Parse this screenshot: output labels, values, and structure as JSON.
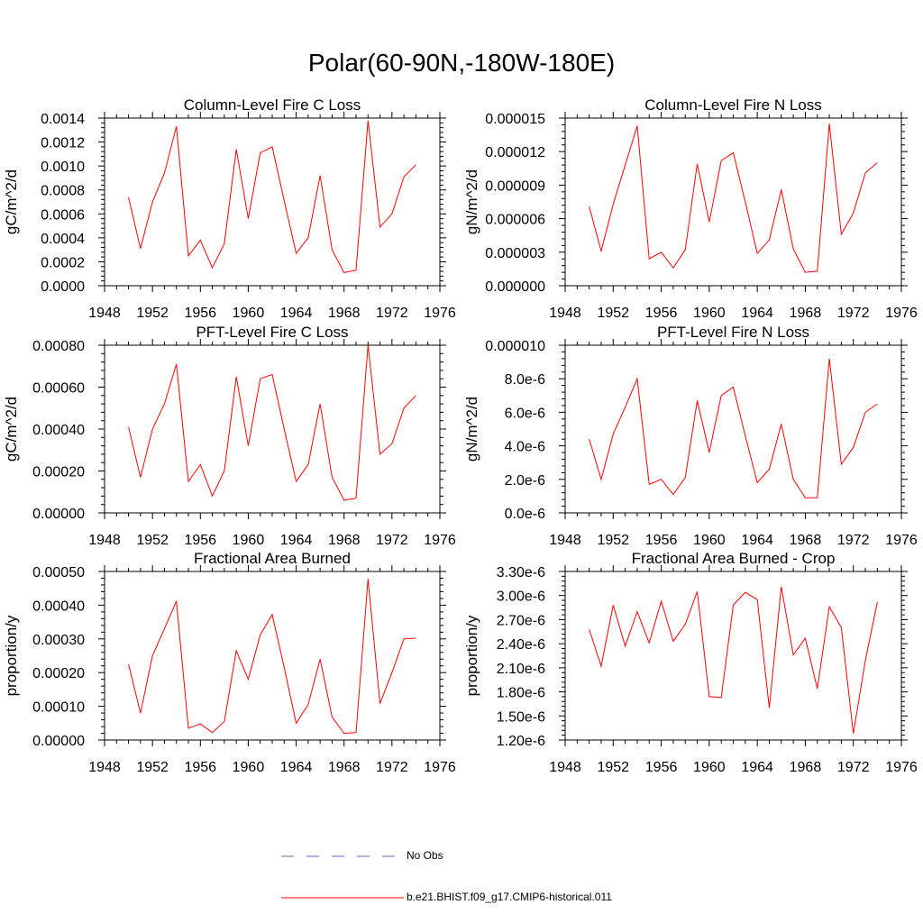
{
  "page": {
    "title": "Polar(60-90N,-180W-180E)"
  },
  "legend": {
    "items": [
      {
        "label": "No Obs",
        "color": "#5a6ec8",
        "style": "dashed"
      },
      {
        "label": "b.e21.BHIST.f09_g17.CMIP6-historical.011",
        "color": "#ff0000",
        "style": "solid"
      }
    ]
  },
  "chart_data": [
    {
      "type": "line",
      "title": "Column-Level Fire C Loss",
      "ylabel": "gC/m^2/d",
      "xlim": [
        1948,
        1976
      ],
      "ylim": [
        0,
        0.0014
      ],
      "xticks": [
        "1948",
        "1952",
        "1956",
        "1960",
        "1964",
        "1968",
        "1972",
        "1976"
      ],
      "yticks": [
        "0.0000",
        "0.0002",
        "0.0004",
        "0.0006",
        "0.0008",
        "0.0010",
        "0.0012",
        "0.0014"
      ],
      "x": [
        1950,
        1951,
        1952,
        1953,
        1954,
        1955,
        1956,
        1957,
        1958,
        1959,
        1960,
        1961,
        1962,
        1963,
        1964,
        1965,
        1966,
        1967,
        1968,
        1969,
        1970,
        1971,
        1972,
        1973,
        1974
      ],
      "series": [
        {
          "color": "#ff0000",
          "values": [
            0.00074,
            0.00031,
            0.0007,
            0.00094,
            0.00133,
            0.00025,
            0.00038,
            0.00015,
            0.00035,
            0.00114,
            0.00056,
            0.00111,
            0.00116,
            0.00071,
            0.00027,
            0.0004,
            0.00092,
            0.0003,
            0.00011,
            0.00013,
            0.00138,
            0.00049,
            0.0006,
            0.00091,
            0.00101
          ]
        }
      ]
    },
    {
      "type": "line",
      "title": "Column-Level Fire N Loss",
      "ylabel": "gN/m^2/d",
      "xlim": [
        1948,
        1976
      ],
      "ylim": [
        0,
        1.5e-05
      ],
      "xticks": [
        "1948",
        "1952",
        "1956",
        "1960",
        "1964",
        "1968",
        "1972",
        "1976"
      ],
      "yticks": [
        "0.000000",
        "0.000003",
        "0.000006",
        "0.000009",
        "0.000012",
        "0.000015"
      ],
      "x": [
        1950,
        1951,
        1952,
        1953,
        1954,
        1955,
        1956,
        1957,
        1958,
        1959,
        1960,
        1961,
        1962,
        1963,
        1964,
        1965,
        1966,
        1967,
        1968,
        1969,
        1970,
        1971,
        1972,
        1973,
        1974
      ],
      "series": [
        {
          "color": "#ff0000",
          "values": [
            7.1e-06,
            3.1e-06,
            7.3e-06,
            1.08e-05,
            1.43e-05,
            2.4e-06,
            3e-06,
            1.6e-06,
            3.2e-06,
            1.09e-05,
            5.7e-06,
            1.12e-05,
            1.19e-05,
            7.5e-06,
            2.9e-06,
            4.1e-06,
            8.6e-06,
            3.3e-06,
            1.2e-06,
            1.3e-06,
            1.45e-05,
            4.6e-06,
            6.5e-06,
            1.01e-05,
            1.1e-05
          ]
        }
      ]
    },
    {
      "type": "line",
      "title": "PFT-Level Fire C Loss",
      "ylabel": "gC/m^2/d",
      "xlim": [
        1948,
        1976
      ],
      "ylim": [
        0,
        0.0008
      ],
      "xticks": [
        "1948",
        "1952",
        "1956",
        "1960",
        "1964",
        "1968",
        "1972",
        "1976"
      ],
      "yticks": [
        "0.00000",
        "0.00020",
        "0.00040",
        "0.00060",
        "0.00080"
      ],
      "x": [
        1950,
        1951,
        1952,
        1953,
        1954,
        1955,
        1956,
        1957,
        1958,
        1959,
        1960,
        1961,
        1962,
        1963,
        1964,
        1965,
        1966,
        1967,
        1968,
        1969,
        1970,
        1971,
        1972,
        1973,
        1974
      ],
      "series": [
        {
          "color": "#ff0000",
          "values": [
            0.00041,
            0.00017,
            0.0004,
            0.00052,
            0.00071,
            0.00015,
            0.00023,
            8e-05,
            0.0002,
            0.00065,
            0.00032,
            0.00064,
            0.00066,
            0.0004,
            0.00015,
            0.00023,
            0.00052,
            0.00017,
            6e-05,
            7e-05,
            0.0008,
            0.00028,
            0.00033,
            0.0005,
            0.00056
          ]
        }
      ]
    },
    {
      "type": "line",
      "title": "PFT-Level Fire N Loss",
      "ylabel": "gN/m^2/d",
      "xlim": [
        1948,
        1976
      ],
      "ylim": [
        0,
        1e-05
      ],
      "xticks": [
        "1948",
        "1952",
        "1956",
        "1960",
        "1964",
        "1968",
        "1972",
        "1976"
      ],
      "yticks": [
        "0.0e-6",
        "2.0e-6",
        "4.0e-6",
        "6.0e-6",
        "8.0e-6",
        "0.000010"
      ],
      "x": [
        1950,
        1951,
        1952,
        1953,
        1954,
        1955,
        1956,
        1957,
        1958,
        1959,
        1960,
        1961,
        1962,
        1963,
        1964,
        1965,
        1966,
        1967,
        1968,
        1969,
        1970,
        1971,
        1972,
        1973,
        1974
      ],
      "series": [
        {
          "color": "#ff0000",
          "values": [
            4.4e-06,
            2e-06,
            4.7e-06,
            6.3e-06,
            8e-06,
            1.7e-06,
            2e-06,
            1.1e-06,
            2.1e-06,
            6.7e-06,
            3.6e-06,
            7e-06,
            7.5e-06,
            4.6e-06,
            1.8e-06,
            2.6e-06,
            5.3e-06,
            2e-06,
            9e-07,
            9e-07,
            9.2e-06,
            2.9e-06,
            3.9e-06,
            6e-06,
            6.5e-06
          ]
        }
      ]
    },
    {
      "type": "line",
      "title": "Fractional Area Burned",
      "ylabel": "proportion/y",
      "xlim": [
        1948,
        1976
      ],
      "ylim": [
        0,
        0.0005
      ],
      "xticks": [
        "1948",
        "1952",
        "1956",
        "1960",
        "1964",
        "1968",
        "1972",
        "1976"
      ],
      "yticks": [
        "0.00000",
        "0.00010",
        "0.00020",
        "0.00030",
        "0.00040",
        "0.00050"
      ],
      "x": [
        1950,
        1951,
        1952,
        1953,
        1954,
        1955,
        1956,
        1957,
        1958,
        1959,
        1960,
        1961,
        1962,
        1963,
        1964,
        1965,
        1966,
        1967,
        1968,
        1969,
        1970,
        1971,
        1972,
        1973,
        1974
      ],
      "series": [
        {
          "color": "#ff0000",
          "values": [
            0.000225,
            8e-05,
            0.00025,
            0.00033,
            0.000412,
            3.5e-05,
            4.8e-05,
            2.2e-05,
            5.5e-05,
            0.000265,
            0.00018,
            0.000312,
            0.000372,
            0.000215,
            5e-05,
            0.000105,
            0.00024,
            6.8e-05,
            2e-05,
            2.2e-05,
            0.000478,
            0.000108,
            0.0002,
            0.0003,
            0.000302
          ]
        }
      ]
    },
    {
      "type": "line",
      "title": "Fractional Area Burned - Crop",
      "ylabel": "proportion/y",
      "xlim": [
        1948,
        1976
      ],
      "ylim": [
        1.2e-06,
        3.3e-06
      ],
      "xticks": [
        "1948",
        "1952",
        "1956",
        "1960",
        "1964",
        "1968",
        "1972",
        "1976"
      ],
      "yticks": [
        "1.20e-6",
        "1.50e-6",
        "1.80e-6",
        "2.10e-6",
        "2.40e-6",
        "2.70e-6",
        "3.00e-6",
        "3.30e-6"
      ],
      "x": [
        1950,
        1951,
        1952,
        1953,
        1954,
        1955,
        1956,
        1957,
        1958,
        1959,
        1960,
        1961,
        1962,
        1963,
        1964,
        1965,
        1966,
        1967,
        1968,
        1969,
        1970,
        1971,
        1972,
        1973,
        1974
      ],
      "series": [
        {
          "color": "#ff0000",
          "values": [
            2.58e-06,
            2.12e-06,
            2.88e-06,
            2.37e-06,
            2.8e-06,
            2.41e-06,
            2.93e-06,
            2.43e-06,
            2.64e-06,
            3.05e-06,
            1.74e-06,
            1.73e-06,
            2.88e-06,
            3.04e-06,
            2.95e-06,
            1.6e-06,
            3.11e-06,
            2.26e-06,
            2.47e-06,
            1.84e-06,
            2.86e-06,
            2.6e-06,
            1.28e-06,
            2.19e-06,
            2.92e-06
          ]
        }
      ]
    }
  ]
}
